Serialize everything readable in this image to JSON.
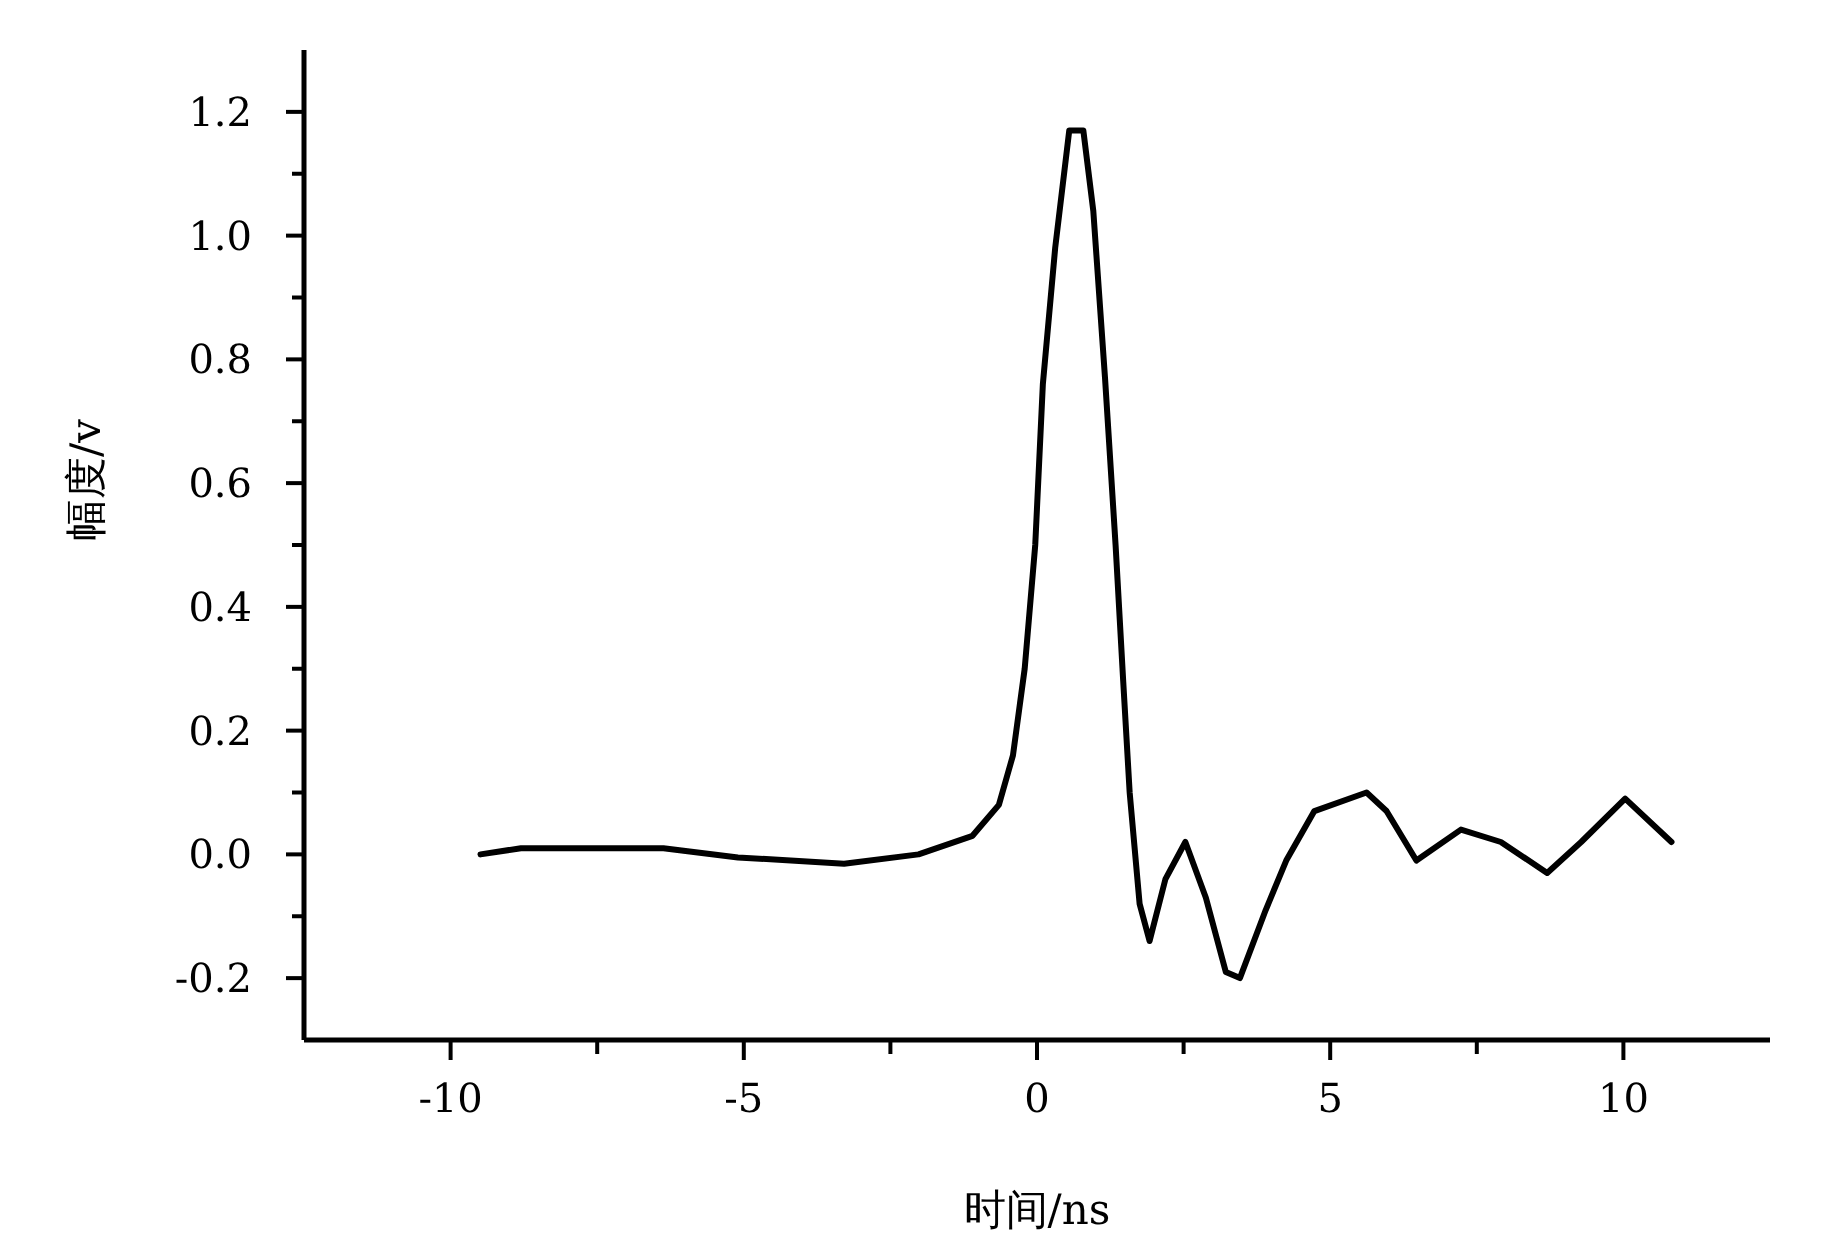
{
  "chart_data": {
    "type": "line",
    "xlabel": "时间/ns",
    "ylabel": "幅度/v",
    "color": "#000000",
    "grid": false,
    "legend": false,
    "marker": "none",
    "line_style": "solid",
    "x": [
      -9.49,
      -8.8,
      -7.74,
      -6.37,
      -5.1,
      -3.29,
      -2.02,
      -1.1,
      -0.65,
      -0.41,
      -0.21,
      -0.03,
      0.1,
      0.31,
      0.55,
      0.79,
      0.96,
      1.16,
      1.34,
      1.47,
      1.58,
      1.75,
      1.92,
      2.19,
      2.53,
      2.88,
      3.22,
      3.46,
      3.9,
      4.25,
      4.73,
      5.62,
      5.96,
      6.47,
      7.23,
      7.91,
      8.7,
      9.28,
      10.03,
      10.82
    ],
    "values": [
      0.0,
      0.01,
      0.01,
      0.01,
      -0.005,
      -0.015,
      0.0,
      0.03,
      0.08,
      0.16,
      0.3,
      0.5,
      0.76,
      0.98,
      1.17,
      1.17,
      1.04,
      0.77,
      0.5,
      0.28,
      0.1,
      -0.08,
      -0.14,
      -0.04,
      0.02,
      -0.07,
      -0.19,
      -0.2,
      -0.09,
      -0.01,
      0.07,
      0.1,
      0.07,
      -0.01,
      0.04,
      0.02,
      -0.03,
      0.02,
      0.09,
      0.02
    ],
    "xlim": [
      -12.5,
      12.5
    ],
    "ylim": [
      -0.3,
      1.3
    ],
    "xticks": [
      -10,
      {
        "value": -7.5,
        "label": null
      },
      -5,
      {
        "value": -2.5,
        "label": null
      },
      0,
      {
        "value": 2.5,
        "label": null
      },
      5,
      {
        "value": 7.5,
        "label": null
      },
      10
    ],
    "yticks": [
      {
        "value": -0.2,
        "label": "-0.2"
      },
      {
        "value": -0.1,
        "label": null
      },
      {
        "value": 0,
        "label": "0.0"
      },
      {
        "value": 0.1,
        "label": null
      },
      {
        "value": 0.2,
        "label": "0.2"
      },
      {
        "value": 0.3,
        "label": null
      },
      {
        "value": 0.4,
        "label": "0.4"
      },
      {
        "value": 0.5,
        "label": null
      },
      {
        "value": 0.6,
        "label": "0.6"
      },
      {
        "value": 0.7,
        "label": null
      },
      {
        "value": 0.8,
        "label": "0.8"
      },
      {
        "value": 0.9,
        "label": null
      },
      {
        "value": 1.0,
        "label": "1.0"
      },
      {
        "value": 1.1,
        "label": null
      },
      {
        "value": 1.2,
        "label": "1.2"
      }
    ]
  }
}
